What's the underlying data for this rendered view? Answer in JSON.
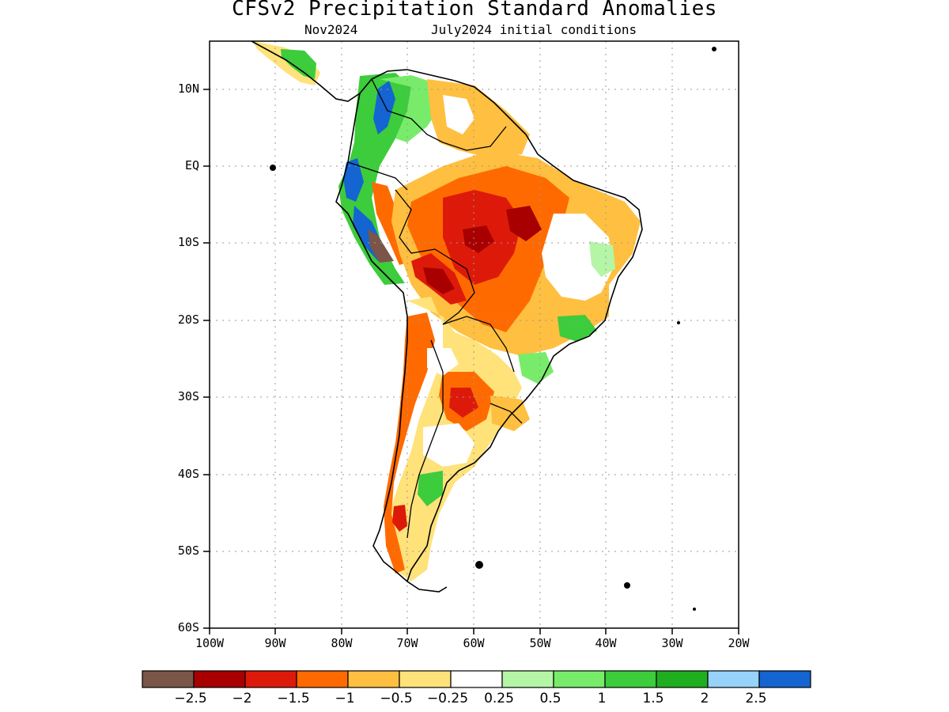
{
  "map": {
    "title": "CFSv2 Precipitation Standard Anomalies",
    "subtitle_left": "Nov2024",
    "subtitle_right": "July2024 initial conditions",
    "lat_ticks": [
      "10N",
      "EQ",
      "10S",
      "20S",
      "30S",
      "40S",
      "50S",
      "60S"
    ],
    "lon_ticks": [
      "100W",
      "90W",
      "80W",
      "70W",
      "60W",
      "50W",
      "40W",
      "30W",
      "20W"
    ],
    "grid": "dotted",
    "extent": {
      "lon": [
        -100,
        -20
      ],
      "lat": [
        -60,
        15
      ]
    }
  },
  "colorbar": {
    "colors": [
      "#7a5548",
      "#a80000",
      "#dd1a0a",
      "#ff6a00",
      "#ffbf40",
      "#ffe27a",
      "#ffffff",
      "#b4f5a6",
      "#78ec6a",
      "#3ccc3c",
      "#1fae1f",
      "#96d2fa",
      "#1464d2"
    ],
    "labels": [
      "-2.5",
      "-2",
      "-1.5",
      "-1",
      "-0.5",
      "-0.25",
      "0.25",
      "0.5",
      "1",
      "1.5",
      "2",
      "2.5"
    ]
  },
  "legend_labels": {
    "l0": "−2.5",
    "l1": "−2",
    "l2": "−1.5",
    "l3": "−1",
    "l4": "−0.5",
    "l5": "−0.25",
    "l6": "0.25",
    "l7": "0.5",
    "l8": "1",
    "l9": "1.5",
    "l10": "2",
    "l11": "2.5"
  }
}
